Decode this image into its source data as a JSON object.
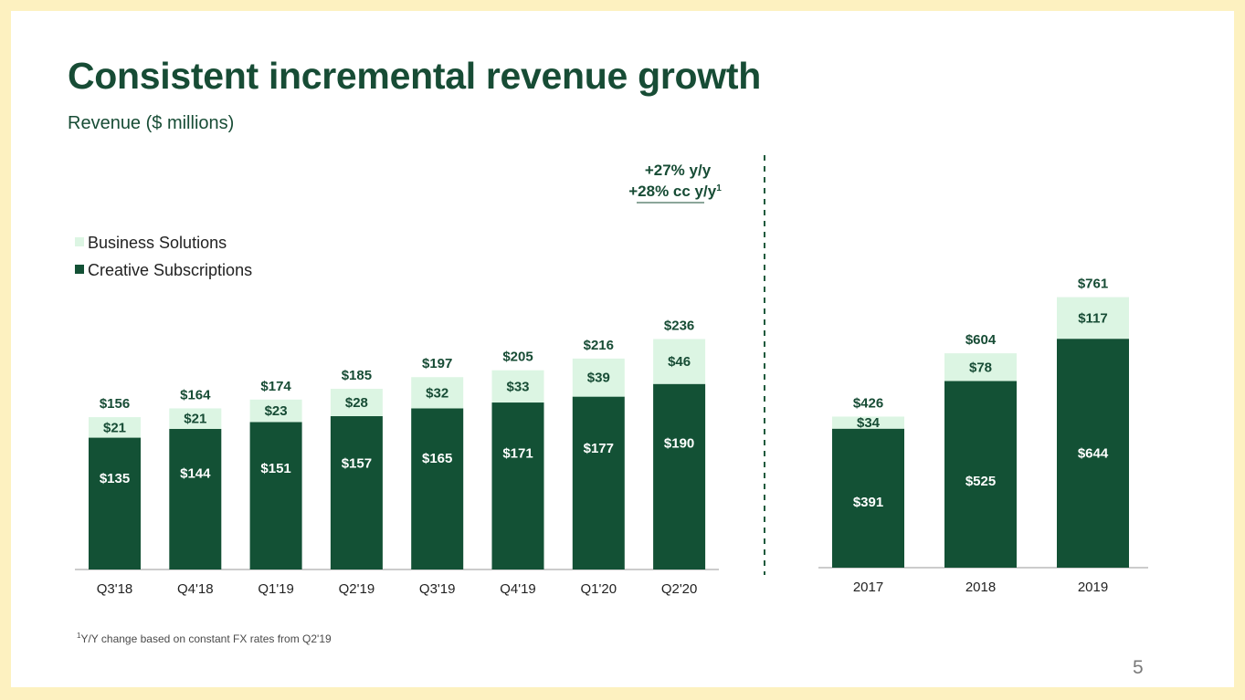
{
  "page": {
    "title": "Consistent incremental revenue growth",
    "subtitle": "Revenue ($ millions)",
    "footnote_marker": "1",
    "footnote_text": "Y/Y change based on constant FX rates from Q2'19",
    "page_number": "5"
  },
  "colors": {
    "creative": "#135135",
    "business": "#dcf5e3",
    "title": "#174c35",
    "background": "#fdf1c0"
  },
  "growth_annotation": {
    "line1": "+27% y/y",
    "line2_main": "+28% cc y/y",
    "line2_sup": "1"
  },
  "chart_data": [
    {
      "type": "bar",
      "stacked": true,
      "categories": [
        "Q3'18",
        "Q4'18",
        "Q1'19",
        "Q2'19",
        "Q3'19",
        "Q4'19",
        "Q1'20",
        "Q2'20"
      ],
      "series": [
        {
          "name": "Creative Subscriptions",
          "values": [
            135,
            144,
            151,
            157,
            165,
            171,
            177,
            190
          ],
          "labels": [
            "$135",
            "$144",
            "$151",
            "$157",
            "$165",
            "$171",
            "$177",
            "$190"
          ]
        },
        {
          "name": "Business Solutions",
          "values": [
            21,
            21,
            23,
            28,
            32,
            33,
            39,
            46
          ],
          "labels": [
            "$21",
            "$21",
            "$23",
            "$28",
            "$32",
            "$33",
            "$39",
            "$46"
          ]
        }
      ],
      "totals": [
        156,
        164,
        174,
        185,
        197,
        205,
        216,
        236
      ],
      "total_labels": [
        "$156",
        "$164",
        "$174",
        "$185",
        "$197",
        "$205",
        "$216",
        "$236"
      ],
      "legend": [
        "Business Solutions",
        "Creative Subscriptions"
      ],
      "legend_position": "top-left",
      "grid": false,
      "ylim": [
        0,
        250
      ]
    },
    {
      "type": "bar",
      "stacked": true,
      "categories": [
        "2017",
        "2018",
        "2019"
      ],
      "series": [
        {
          "name": "Creative Subscriptions",
          "values": [
            391,
            525,
            644
          ],
          "labels": [
            "$391",
            "$525",
            "$644"
          ]
        },
        {
          "name": "Business Solutions",
          "values": [
            34,
            78,
            117
          ],
          "labels": [
            "$34",
            "$78",
            "$117"
          ]
        }
      ],
      "totals": [
        426,
        604,
        761
      ],
      "total_labels": [
        "$426",
        "$604",
        "$761"
      ],
      "grid": false,
      "ylim": [
        0,
        800
      ]
    }
  ]
}
